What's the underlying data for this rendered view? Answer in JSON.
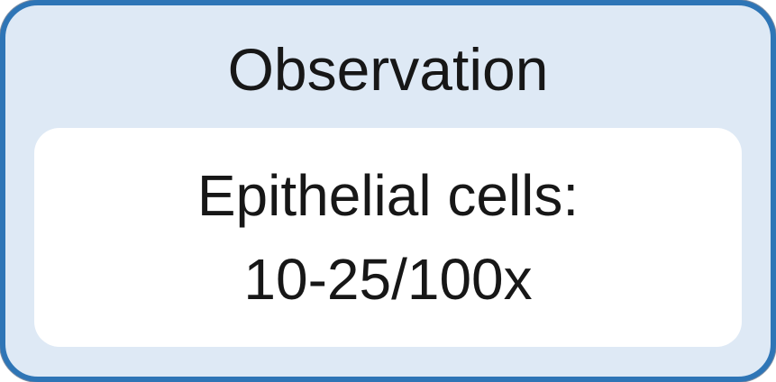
{
  "diagram": {
    "title": "Observation",
    "observation": {
      "line1": "Epithelial cells:",
      "line2": "10-25/100x"
    }
  },
  "colors": {
    "border_blue": "#2e75b6",
    "fill_blue": "#dee9f5",
    "box_white": "#ffffff",
    "text_black": "#171717"
  }
}
